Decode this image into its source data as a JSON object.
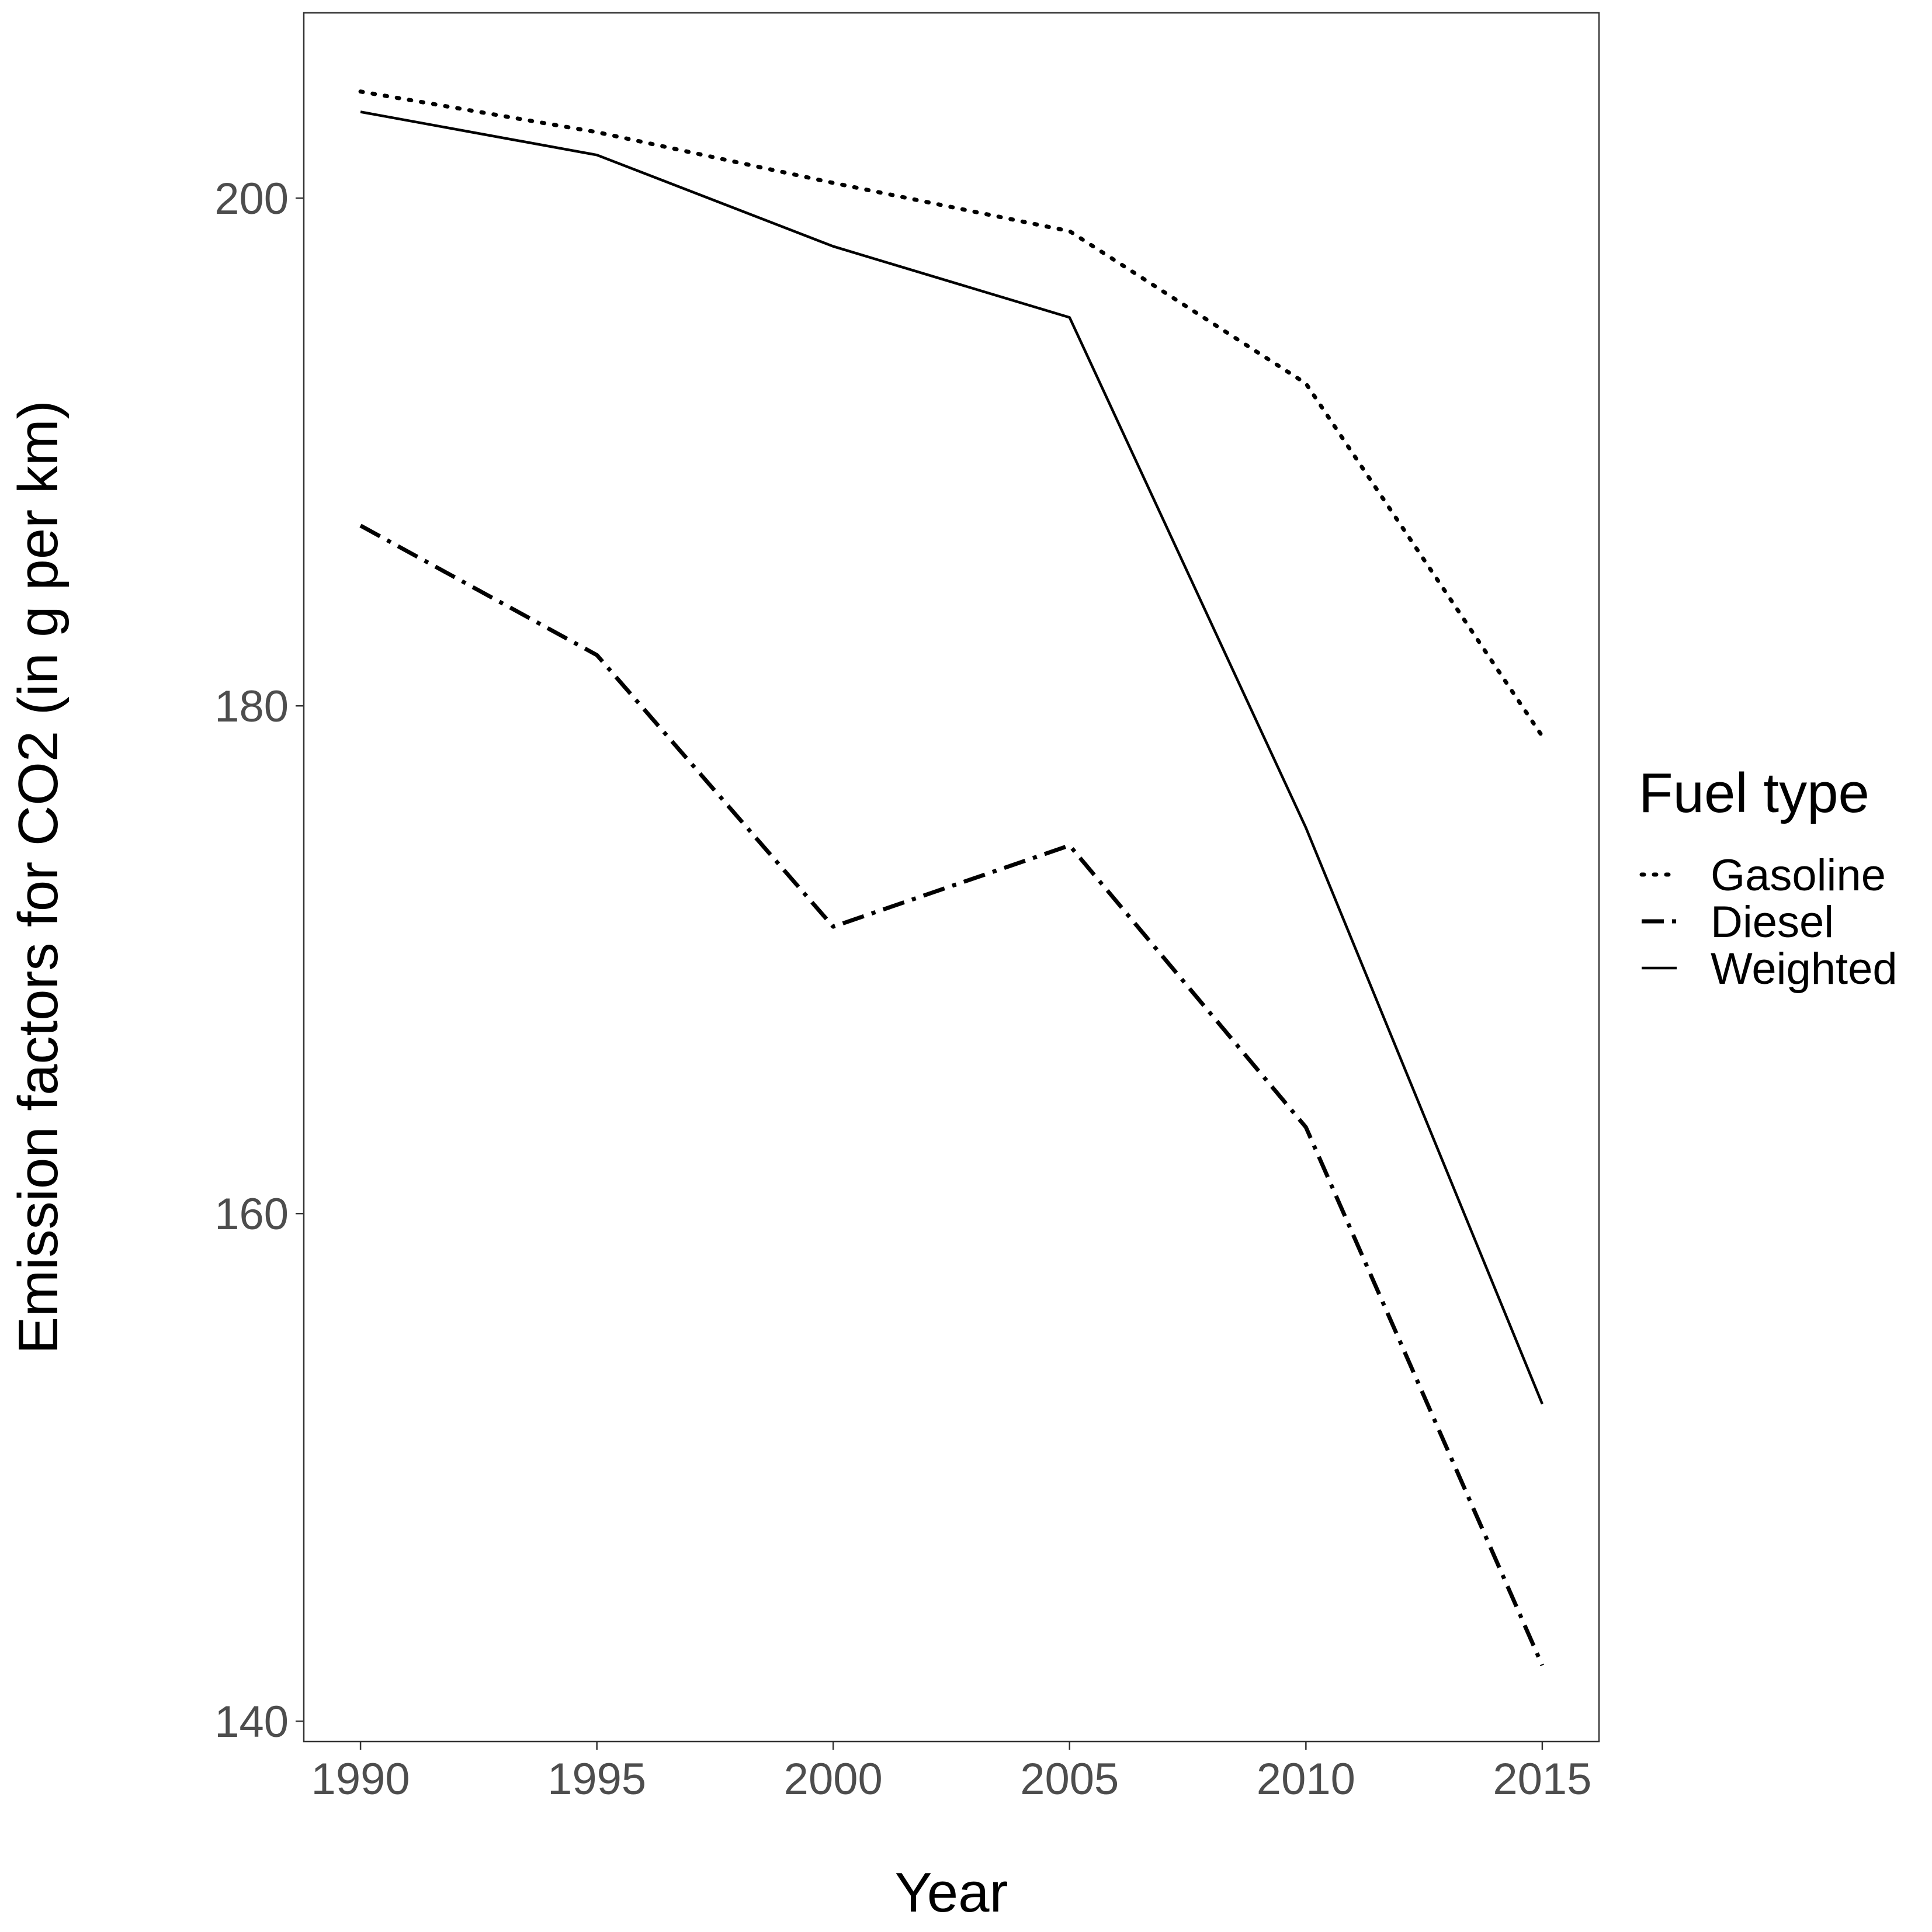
{
  "chart_data": {
    "type": "line",
    "xlabel": "Year",
    "ylabel": "Emission factors for CO2 (in g per km)",
    "x": [
      1990,
      1995,
      2000,
      2005,
      2010,
      2015
    ],
    "xlim": [
      1988.8,
      2016.2
    ],
    "ylim": [
      139.2,
      207.3
    ],
    "x_ticks": [
      "1990",
      "1995",
      "2000",
      "2005",
      "2010",
      "2015"
    ],
    "y_ticks": [
      140,
      160,
      180,
      200
    ],
    "grid": false,
    "legend": {
      "title": "Fuel type",
      "placement": "right"
    },
    "series": [
      {
        "name": "Gasoline",
        "style": "dotted",
        "values": [
          204.2,
          202.6,
          200.6,
          198.7,
          192.7,
          178.8
        ]
      },
      {
        "name": "Diesel",
        "style": "dashed",
        "values": [
          187.1,
          182.0,
          171.3,
          174.5,
          163.4,
          142.2
        ]
      },
      {
        "name": "Weighted",
        "style": "solid",
        "values": [
          203.4,
          201.7,
          198.1,
          195.3,
          175.2,
          152.5
        ]
      }
    ]
  }
}
